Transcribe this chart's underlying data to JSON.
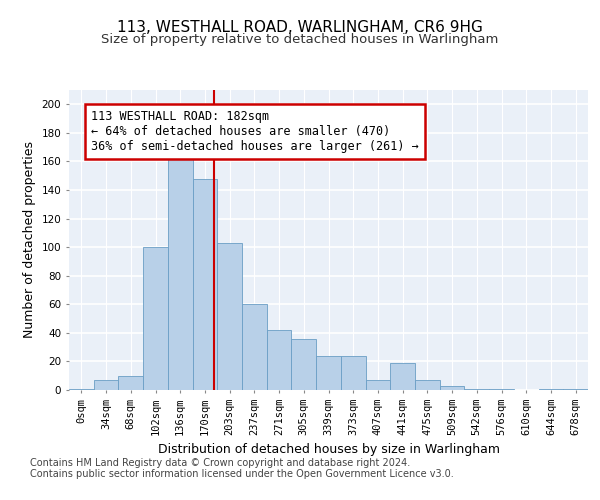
{
  "title_line1": "113, WESTHALL ROAD, WARLINGHAM, CR6 9HG",
  "title_line2": "Size of property relative to detached houses in Warlingham",
  "xlabel": "Distribution of detached houses by size in Warlingham",
  "ylabel": "Number of detached properties",
  "bin_labels": [
    "0sqm",
    "34sqm",
    "68sqm",
    "102sqm",
    "136sqm",
    "170sqm",
    "203sqm",
    "237sqm",
    "271sqm",
    "305sqm",
    "339sqm",
    "373sqm",
    "407sqm",
    "441sqm",
    "475sqm",
    "509sqm",
    "542sqm",
    "576sqm",
    "610sqm",
    "644sqm",
    "678sqm"
  ],
  "bar_values": [
    1,
    7,
    10,
    100,
    162,
    148,
    103,
    60,
    42,
    36,
    24,
    24,
    7,
    19,
    7,
    3,
    1,
    1,
    0,
    1,
    1
  ],
  "bar_color": "#b8d0e8",
  "bar_edge_color": "#6a9ec5",
  "vline_x": 5.36,
  "annotation_text": "113 WESTHALL ROAD: 182sqm\n← 64% of detached houses are smaller (470)\n36% of semi-detached houses are larger (261) →",
  "annotation_box_color": "#ffffff",
  "annotation_box_edge_color": "#cc0000",
  "vline_color": "#cc0000",
  "footer_line1": "Contains HM Land Registry data © Crown copyright and database right 2024.",
  "footer_line2": "Contains public sector information licensed under the Open Government Licence v3.0.",
  "ylim": [
    0,
    210
  ],
  "yticks": [
    0,
    20,
    40,
    60,
    80,
    100,
    120,
    140,
    160,
    180,
    200
  ],
  "background_color": "#eaf0f8",
  "grid_color": "#ffffff",
  "title_fontsize": 11,
  "subtitle_fontsize": 9.5,
  "ylabel_fontsize": 9,
  "xlabel_fontsize": 9,
  "tick_fontsize": 7.5,
  "annotation_fontsize": 8.5,
  "footer_fontsize": 7
}
